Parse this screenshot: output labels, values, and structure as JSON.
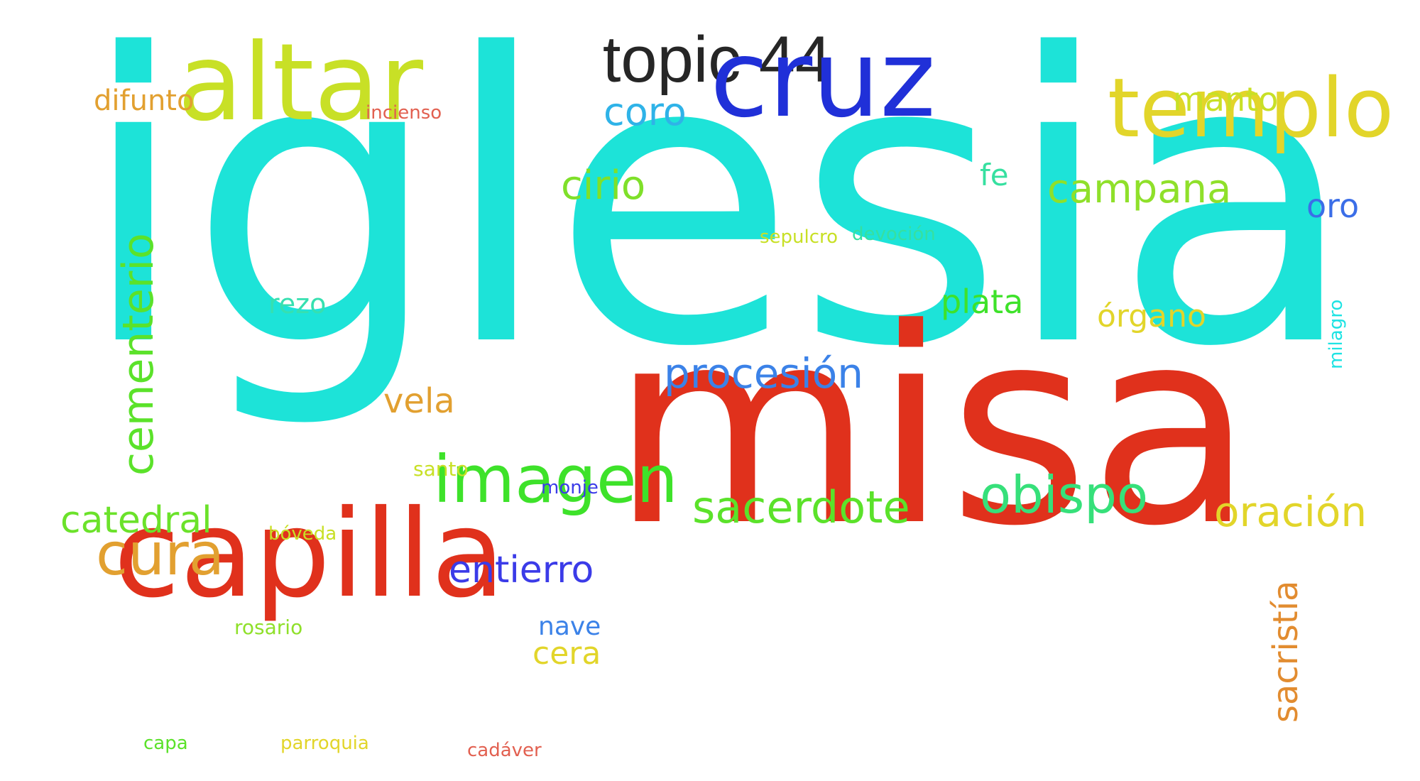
{
  "title": "topic 44",
  "words": [
    {
      "text": "iglesia",
      "color": "#1de3d8",
      "weight": 1.0
    },
    {
      "text": "misa",
      "color": "#e0311c",
      "weight": 0.66
    },
    {
      "text": "cruz",
      "color": "#2030d8",
      "weight": 0.33
    },
    {
      "text": "altar",
      "color": "#c8e026",
      "weight": 0.33
    },
    {
      "text": "capilla",
      "color": "#e0311c",
      "weight": 0.33
    },
    {
      "text": "templo",
      "color": "#e2d52a",
      "weight": 0.21
    },
    {
      "text": "imagen",
      "color": "#3ee22a",
      "weight": 0.15
    },
    {
      "text": "cementerio",
      "color": "#5be22a",
      "weight": 0.13
    },
    {
      "text": "cura",
      "color": "#e2a030",
      "weight": 0.13
    },
    {
      "text": "obispo",
      "color": "#36e07a",
      "weight": 0.12
    },
    {
      "text": "sacerdote",
      "color": "#5be22a",
      "weight": 0.1
    },
    {
      "text": "campana",
      "color": "#8fe02a",
      "weight": 0.09
    },
    {
      "text": "procesión",
      "color": "#3b82e8",
      "weight": 0.09
    },
    {
      "text": "oración",
      "color": "#e2d52a",
      "weight": 0.09
    },
    {
      "text": "coro",
      "color": "#2fb3e8",
      "weight": 0.09
    },
    {
      "text": "entierro",
      "color": "#3b3be8",
      "weight": 0.08
    },
    {
      "text": "cirio",
      "color": "#7fe02a",
      "weight": 0.08
    },
    {
      "text": "sacristía",
      "color": "#e28c30",
      "weight": 0.08
    },
    {
      "text": "catedral",
      "color": "#6be22a",
      "weight": 0.08
    },
    {
      "text": "vela",
      "color": "#e2a030",
      "weight": 0.08
    },
    {
      "text": "manto",
      "color": "#c8e026",
      "weight": 0.07
    },
    {
      "text": "plata",
      "color": "#3ee22a",
      "weight": 0.07
    },
    {
      "text": "órgano",
      "color": "#e2d52a",
      "weight": 0.06
    },
    {
      "text": "oro",
      "color": "#3b6ee8",
      "weight": 0.06
    },
    {
      "text": "cera",
      "color": "#e2d52a",
      "weight": 0.06
    },
    {
      "text": "difunto",
      "color": "#e2a030",
      "weight": 0.06
    },
    {
      "text": "fe",
      "color": "#36e0a0",
      "weight": 0.06
    },
    {
      "text": "rezo",
      "color": "#36e0b0",
      "weight": 0.05
    },
    {
      "text": "nave",
      "color": "#3b82e8",
      "weight": 0.05
    },
    {
      "text": "milagro",
      "color": "#1de3e3",
      "weight": 0.04
    },
    {
      "text": "santo",
      "color": "#c8e026",
      "weight": 0.04
    },
    {
      "text": "rosario",
      "color": "#8fe02a",
      "weight": 0.04
    },
    {
      "text": "bóveda",
      "color": "#c8e026",
      "weight": 0.04
    },
    {
      "text": "monje",
      "color": "#3b3be8",
      "weight": 0.04
    },
    {
      "text": "incienso",
      "color": "#e26050",
      "weight": 0.04
    },
    {
      "text": "sepulcro",
      "color": "#c8e026",
      "weight": 0.04
    },
    {
      "text": "devoción",
      "color": "#36e0a0",
      "weight": 0.04
    },
    {
      "text": "capa",
      "color": "#5be22a",
      "weight": 0.04
    },
    {
      "text": "parroquia",
      "color": "#e2d52a",
      "weight": 0.04
    },
    {
      "text": "cadáver",
      "color": "#e26050",
      "weight": 0.04
    }
  ]
}
